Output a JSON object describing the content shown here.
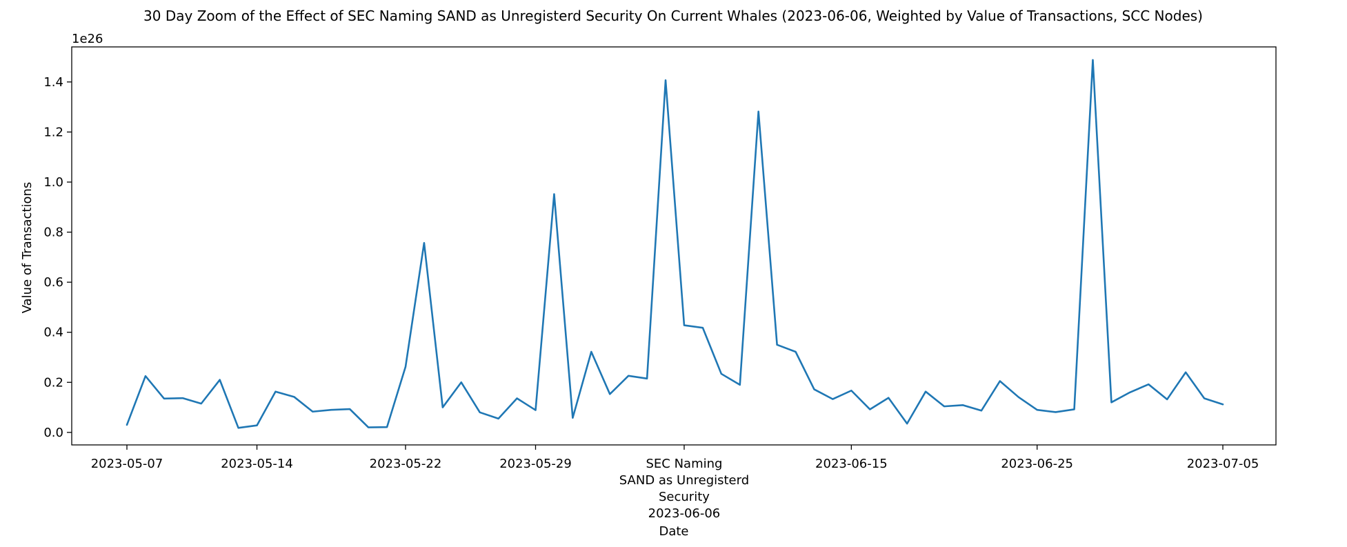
{
  "chart_data": {
    "type": "line",
    "title": "30 Day Zoom of the Effect of SEC Naming SAND as Unregisterd Security On Current Whales (2023-06-06, Weighted by Value of Transactions, SCC Nodes)",
    "xlabel": "Date",
    "ylabel": "Value of Transactions",
    "y_offset_label": "1e26",
    "ylim": [
      -0.05,
      1.54
    ],
    "y_ticks": [
      0.0,
      0.2,
      0.4,
      0.6,
      0.8,
      1.0,
      1.2,
      1.4
    ],
    "y_tick_labels": [
      "0.0",
      "0.2",
      "0.4",
      "0.6",
      "0.8",
      "1.0",
      "1.2",
      "1.4"
    ],
    "x_start": "2023-05-07",
    "x_tick_labels": [
      {
        "date": "2023-05-07",
        "lines": [
          "2023-05-07"
        ]
      },
      {
        "date": "2023-05-14",
        "lines": [
          "2023-05-14"
        ]
      },
      {
        "date": "2023-05-22",
        "lines": [
          "2023-05-22"
        ]
      },
      {
        "date": "2023-05-29",
        "lines": [
          "2023-05-29"
        ]
      },
      {
        "date": "2023-06-06",
        "lines": [
          "SEC Naming",
          "SAND as Unregisterd",
          "Security",
          "2023-06-06"
        ]
      },
      {
        "date": "2023-06-15",
        "lines": [
          "2023-06-15"
        ]
      },
      {
        "date": "2023-06-25",
        "lines": [
          "2023-06-25"
        ]
      },
      {
        "date": "2023-07-05",
        "lines": [
          "2023-07-05"
        ]
      }
    ],
    "line_color": "#1f77b4",
    "grid": false,
    "x": [
      "2023-05-07",
      "2023-05-08",
      "2023-05-09",
      "2023-05-10",
      "2023-05-11",
      "2023-05-12",
      "2023-05-13",
      "2023-05-14",
      "2023-05-15",
      "2023-05-16",
      "2023-05-17",
      "2023-05-18",
      "2023-05-19",
      "2023-05-20",
      "2023-05-21",
      "2023-05-22",
      "2023-05-23",
      "2023-05-24",
      "2023-05-25",
      "2023-05-26",
      "2023-05-27",
      "2023-05-28",
      "2023-05-29",
      "2023-05-30",
      "2023-05-31",
      "2023-06-01",
      "2023-06-02",
      "2023-06-03",
      "2023-06-04",
      "2023-06-05",
      "2023-06-06",
      "2023-06-07",
      "2023-06-08",
      "2023-06-09",
      "2023-06-10",
      "2023-06-11",
      "2023-06-12",
      "2023-06-13",
      "2023-06-14",
      "2023-06-15",
      "2023-06-16",
      "2023-06-17",
      "2023-06-18",
      "2023-06-19",
      "2023-06-20",
      "2023-06-21",
      "2023-06-22",
      "2023-06-23",
      "2023-06-24",
      "2023-06-25",
      "2023-06-26",
      "2023-06-27",
      "2023-06-28",
      "2023-06-29",
      "2023-06-30",
      "2023-07-01",
      "2023-07-02",
      "2023-07-03",
      "2023-07-04",
      "2023-07-05"
    ],
    "values": [
      0.03,
      0.225,
      0.135,
      0.137,
      0.115,
      0.21,
      0.018,
      0.028,
      0.163,
      0.142,
      0.083,
      0.09,
      0.093,
      0.02,
      0.021,
      0.262,
      0.757,
      0.1,
      0.2,
      0.08,
      0.055,
      0.136,
      0.089,
      0.952,
      0.058,
      0.322,
      0.153,
      0.226,
      0.215,
      1.407,
      0.428,
      0.418,
      0.234,
      0.19,
      1.282,
      0.35,
      0.322,
      0.172,
      0.133,
      0.167,
      0.092,
      0.138,
      0.035,
      0.163,
      0.104,
      0.109,
      0.087,
      0.205,
      0.141,
      0.09,
      0.081,
      0.092,
      1.488,
      0.12,
      0.16,
      0.192,
      0.132,
      0.24,
      0.136,
      0.112
    ]
  }
}
